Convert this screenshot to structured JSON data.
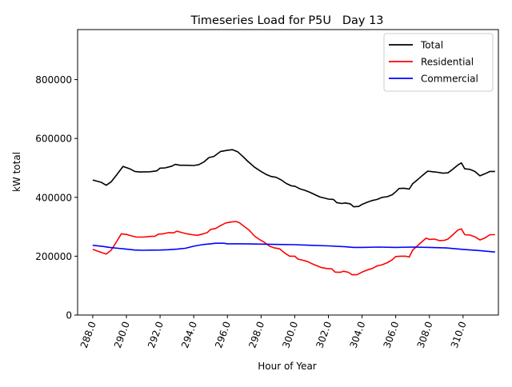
{
  "chart_data": {
    "type": "line",
    "title": "Timeseries Load for P5U   Day 13",
    "xlabel": "Hour of Year",
    "ylabel": "kW total",
    "xlim": [
      287.1,
      312.1
    ],
    "ylim": [
      0,
      970000
    ],
    "x_ticks": [
      288,
      290,
      292,
      294,
      296,
      298,
      300,
      302,
      304,
      306,
      308,
      310
    ],
    "x_tick_labels": [
      "288.0",
      "290.0",
      "292.0",
      "294.0",
      "296.0",
      "298.0",
      "300.0",
      "302.0",
      "304.0",
      "306.0",
      "308.0",
      "310.0"
    ],
    "y_ticks": [
      0,
      200000,
      400000,
      600000,
      800000
    ],
    "y_tick_labels": [
      "0",
      "200000",
      "400000",
      "600000",
      "800000"
    ],
    "legend_position": "top-right",
    "series": [
      {
        "name": "Total",
        "color": "#000000",
        "points": [
          [
            288.0,
            459000
          ],
          [
            288.5,
            451000
          ],
          [
            288.8,
            441000
          ],
          [
            289.1,
            453000
          ],
          [
            289.4,
            475000
          ],
          [
            289.8,
            505000
          ],
          [
            290.2,
            497000
          ],
          [
            290.5,
            488000
          ],
          [
            290.8,
            486000
          ],
          [
            291.4,
            487000
          ],
          [
            291.8,
            490000
          ],
          [
            292.0,
            499000
          ],
          [
            292.3,
            500000
          ],
          [
            292.7,
            506000
          ],
          [
            292.9,
            512000
          ],
          [
            293.2,
            509000
          ],
          [
            293.6,
            509000
          ],
          [
            294.0,
            508000
          ],
          [
            294.3,
            511000
          ],
          [
            294.6,
            520000
          ],
          [
            294.9,
            535000
          ],
          [
            295.2,
            539000
          ],
          [
            295.6,
            556000
          ],
          [
            296.0,
            560000
          ],
          [
            296.3,
            562000
          ],
          [
            296.6,
            555000
          ],
          [
            296.9,
            540000
          ],
          [
            297.2,
            523000
          ],
          [
            297.6,
            503000
          ],
          [
            298.0,
            488000
          ],
          [
            298.3,
            478000
          ],
          [
            298.6,
            471000
          ],
          [
            298.9,
            468000
          ],
          [
            299.2,
            459000
          ],
          [
            299.5,
            447000
          ],
          [
            299.8,
            439000
          ],
          [
            300.0,
            438000
          ],
          [
            300.3,
            429000
          ],
          [
            300.6,
            424000
          ],
          [
            300.9,
            417000
          ],
          [
            301.2,
            409000
          ],
          [
            301.5,
            401000
          ],
          [
            301.8,
            397000
          ],
          [
            302.0,
            394000
          ],
          [
            302.3,
            393000
          ],
          [
            302.5,
            382000
          ],
          [
            302.8,
            379000
          ],
          [
            303.0,
            381000
          ],
          [
            303.3,
            378000
          ],
          [
            303.5,
            368000
          ],
          [
            303.8,
            369000
          ],
          [
            304.0,
            376000
          ],
          [
            304.3,
            383000
          ],
          [
            304.6,
            389000
          ],
          [
            304.9,
            393000
          ],
          [
            305.2,
            400000
          ],
          [
            305.5,
            402000
          ],
          [
            305.8,
            409000
          ],
          [
            306.0,
            419000
          ],
          [
            306.2,
            430000
          ],
          [
            306.5,
            431000
          ],
          [
            306.8,
            428000
          ],
          [
            307.0,
            446000
          ],
          [
            307.3,
            460000
          ],
          [
            307.6,
            475000
          ],
          [
            307.9,
            489000
          ],
          [
            308.2,
            487000
          ],
          [
            308.5,
            485000
          ],
          [
            308.8,
            482000
          ],
          [
            309.1,
            483000
          ],
          [
            309.4,
            496000
          ],
          [
            309.7,
            510000
          ],
          [
            309.9,
            517000
          ],
          [
            310.1,
            497000
          ],
          [
            310.4,
            495000
          ],
          [
            310.7,
            488000
          ],
          [
            311.0,
            473000
          ],
          [
            311.3,
            480000
          ],
          [
            311.6,
            488000
          ],
          [
            311.9,
            488000
          ]
        ]
      },
      {
        "name": "Residential",
        "color": "#ff0000",
        "points": [
          [
            288.0,
            223000
          ],
          [
            288.4,
            215000
          ],
          [
            288.8,
            207000
          ],
          [
            289.1,
            221000
          ],
          [
            289.4,
            248000
          ],
          [
            289.7,
            276000
          ],
          [
            290.0,
            274000
          ],
          [
            290.3,
            269000
          ],
          [
            290.6,
            265000
          ],
          [
            291.0,
            265000
          ],
          [
            291.4,
            267000
          ],
          [
            291.7,
            268000
          ],
          [
            291.9,
            275000
          ],
          [
            292.2,
            276000
          ],
          [
            292.5,
            280000
          ],
          [
            292.8,
            279000
          ],
          [
            293.0,
            285000
          ],
          [
            293.3,
            280000
          ],
          [
            293.6,
            276000
          ],
          [
            293.9,
            273000
          ],
          [
            294.2,
            271000
          ],
          [
            294.5,
            275000
          ],
          [
            294.8,
            280000
          ],
          [
            295.0,
            291000
          ],
          [
            295.3,
            294000
          ],
          [
            295.6,
            304000
          ],
          [
            295.9,
            313000
          ],
          [
            296.2,
            316000
          ],
          [
            296.5,
            318000
          ],
          [
            296.7,
            314000
          ],
          [
            297.0,
            301000
          ],
          [
            297.3,
            288000
          ],
          [
            297.6,
            269000
          ],
          [
            297.9,
            257000
          ],
          [
            298.2,
            247000
          ],
          [
            298.5,
            234000
          ],
          [
            298.8,
            228000
          ],
          [
            299.1,
            225000
          ],
          [
            299.4,
            211000
          ],
          [
            299.7,
            200000
          ],
          [
            300.0,
            200000
          ],
          [
            300.2,
            190000
          ],
          [
            300.5,
            186000
          ],
          [
            300.8,
            181000
          ],
          [
            301.0,
            175000
          ],
          [
            301.3,
            168000
          ],
          [
            301.6,
            161000
          ],
          [
            301.9,
            158000
          ],
          [
            302.2,
            157000
          ],
          [
            302.4,
            146000
          ],
          [
            302.7,
            145000
          ],
          [
            302.9,
            149000
          ],
          [
            303.2,
            145000
          ],
          [
            303.4,
            137000
          ],
          [
            303.7,
            137000
          ],
          [
            304.0,
            146000
          ],
          [
            304.3,
            153000
          ],
          [
            304.6,
            158000
          ],
          [
            304.9,
            167000
          ],
          [
            305.2,
            171000
          ],
          [
            305.5,
            178000
          ],
          [
            305.8,
            188000
          ],
          [
            306.0,
            199000
          ],
          [
            306.3,
            200000
          ],
          [
            306.6,
            200000
          ],
          [
            306.8,
            197000
          ],
          [
            307.0,
            220000
          ],
          [
            307.3,
            236000
          ],
          [
            307.6,
            251000
          ],
          [
            307.8,
            261000
          ],
          [
            308.0,
            257000
          ],
          [
            308.3,
            258000
          ],
          [
            308.6,
            253000
          ],
          [
            308.9,
            254000
          ],
          [
            309.1,
            258000
          ],
          [
            309.4,
            273000
          ],
          [
            309.7,
            289000
          ],
          [
            309.9,
            293000
          ],
          [
            310.1,
            273000
          ],
          [
            310.4,
            272000
          ],
          [
            310.7,
            266000
          ],
          [
            311.0,
            255000
          ],
          [
            311.3,
            262000
          ],
          [
            311.6,
            273000
          ],
          [
            311.9,
            273000
          ]
        ]
      },
      {
        "name": "Commercial",
        "color": "#0000ff",
        "points": [
          [
            288.0,
            237000
          ],
          [
            288.5,
            234000
          ],
          [
            289.0,
            230000
          ],
          [
            289.5,
            227000
          ],
          [
            290.0,
            224000
          ],
          [
            290.5,
            221000
          ],
          [
            291.0,
            220000
          ],
          [
            291.5,
            220500
          ],
          [
            292.0,
            221000
          ],
          [
            292.5,
            222000
          ],
          [
            293.0,
            224000
          ],
          [
            293.5,
            227000
          ],
          [
            294.0,
            234000
          ],
          [
            294.5,
            239000
          ],
          [
            295.0,
            242000
          ],
          [
            295.3,
            244000
          ],
          [
            295.8,
            244000
          ],
          [
            296.0,
            242000
          ],
          [
            297.0,
            242000
          ],
          [
            298.0,
            241000
          ],
          [
            299.0,
            240000
          ],
          [
            300.0,
            239000
          ],
          [
            301.0,
            237000
          ],
          [
            302.0,
            235000
          ],
          [
            303.0,
            232000
          ],
          [
            303.5,
            230000
          ],
          [
            304.0,
            230000
          ],
          [
            305.0,
            231000
          ],
          [
            306.0,
            230000
          ],
          [
            307.0,
            231000
          ],
          [
            308.0,
            230000
          ],
          [
            309.0,
            228000
          ],
          [
            310.0,
            223000
          ],
          [
            311.0,
            219000
          ],
          [
            311.9,
            214000
          ]
        ]
      }
    ]
  }
}
